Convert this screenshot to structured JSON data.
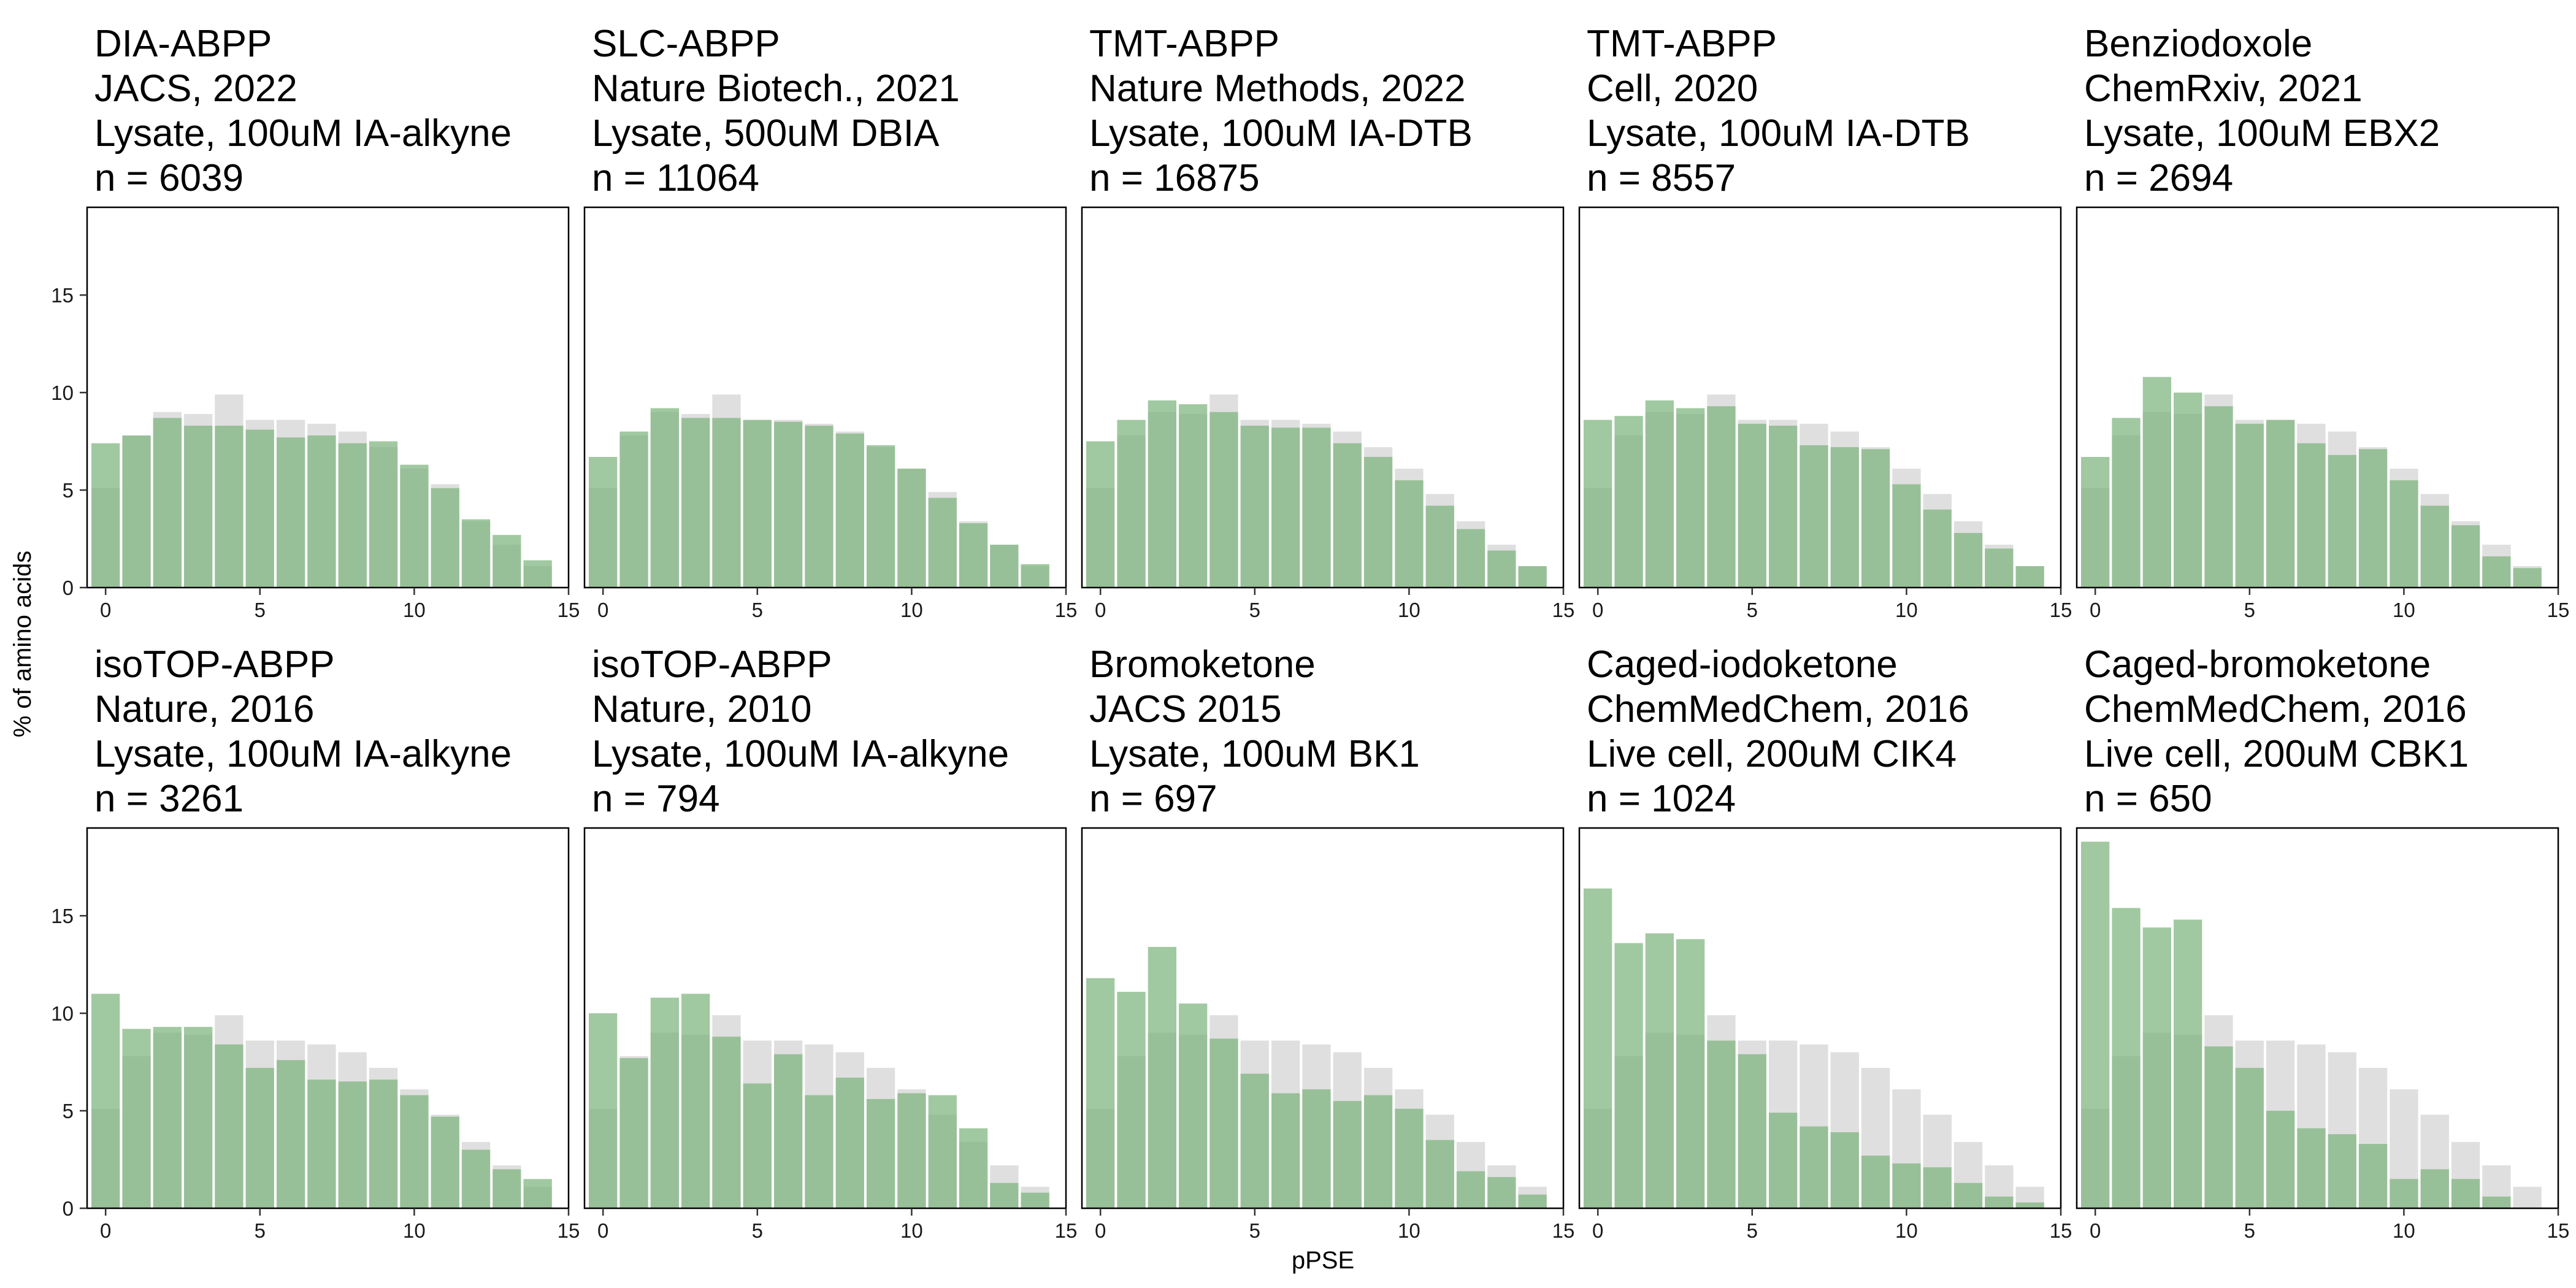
{
  "figure": {
    "ylabel": "% of amino acids",
    "xlabel": "pPSE"
  },
  "colors": {
    "background_bars": "#d9d9d9",
    "foreground_bars": "#79b279",
    "panel_border": "#000000"
  },
  "chart_data": [
    {
      "type": "bar",
      "title_lines": [
        "DIA-ABPP",
        "JACS, 2022",
        "Lysate, 100uM IA-alkyne",
        "n = 6039"
      ],
      "x": [
        0,
        1,
        2,
        3,
        4,
        5,
        6,
        7,
        8,
        9,
        10,
        11,
        12,
        13,
        14
      ],
      "series": [
        {
          "values": [
            5.1,
            7.8,
            9.0,
            8.9,
            9.9,
            8.6,
            8.6,
            8.4,
            8.0,
            7.2,
            6.1,
            5.3,
            3.4,
            2.2,
            1.1
          ]
        },
        {
          "values": [
            7.4,
            7.8,
            8.7,
            8.3,
            8.3,
            8.1,
            7.7,
            7.8,
            7.4,
            7.5,
            6.3,
            5.1,
            3.5,
            2.7,
            1.4
          ]
        }
      ],
      "xlim": [
        -0.6,
        15
      ],
      "ylim": [
        0,
        19.5
      ],
      "xticks": [
        0,
        5,
        10,
        15
      ],
      "yticks": [
        0,
        5,
        10,
        15
      ]
    },
    {
      "type": "bar",
      "title_lines": [
        "SLC-ABPP",
        "Nature Biotech., 2021",
        "Lysate, 500uM DBIA",
        "n = 11064"
      ],
      "x": [
        0,
        1,
        2,
        3,
        4,
        5,
        6,
        7,
        8,
        9,
        10,
        11,
        12,
        13,
        14
      ],
      "series": [
        {
          "values": [
            5.1,
            7.8,
            9.0,
            8.9,
            9.9,
            8.6,
            8.6,
            8.4,
            8.0,
            7.2,
            6.1,
            4.9,
            3.4,
            2.2,
            1.1
          ]
        },
        {
          "values": [
            6.7,
            8.0,
            9.2,
            8.7,
            8.7,
            8.6,
            8.5,
            8.3,
            7.9,
            7.3,
            6.1,
            4.6,
            3.3,
            2.2,
            1.2
          ]
        }
      ],
      "xlim": [
        -0.6,
        15
      ],
      "ylim": [
        0,
        19.5
      ],
      "xticks": [
        0,
        5,
        10,
        15
      ],
      "yticks": [
        0,
        5,
        10,
        15
      ]
    },
    {
      "type": "bar",
      "title_lines": [
        "TMT-ABPP",
        "Nature Methods, 2022",
        "Lysate, 100uM IA-DTB",
        "n = 16875"
      ],
      "x": [
        0,
        1,
        2,
        3,
        4,
        5,
        6,
        7,
        8,
        9,
        10,
        11,
        12,
        13,
        14
      ],
      "series": [
        {
          "values": [
            5.1,
            7.8,
            9.0,
            8.9,
            9.9,
            8.6,
            8.6,
            8.4,
            8.0,
            7.2,
            6.1,
            4.8,
            3.4,
            2.2,
            1.1
          ]
        },
        {
          "values": [
            7.5,
            8.6,
            9.6,
            9.4,
            9.0,
            8.3,
            8.2,
            8.2,
            7.4,
            6.7,
            5.5,
            4.2,
            3.0,
            1.9,
            1.1
          ]
        }
      ],
      "xlim": [
        -0.6,
        15
      ],
      "ylim": [
        0,
        19.5
      ],
      "xticks": [
        0,
        5,
        10,
        15
      ],
      "yticks": [
        0,
        5,
        10,
        15
      ]
    },
    {
      "type": "bar",
      "title_lines": [
        "TMT-ABPP",
        "Cell, 2020",
        "Lysate, 100uM IA-DTB",
        "n = 8557"
      ],
      "x": [
        0,
        1,
        2,
        3,
        4,
        5,
        6,
        7,
        8,
        9,
        10,
        11,
        12,
        13,
        14
      ],
      "series": [
        {
          "values": [
            5.1,
            7.8,
            9.0,
            8.9,
            9.9,
            8.6,
            8.6,
            8.4,
            8.0,
            7.2,
            6.1,
            4.8,
            3.4,
            2.2,
            1.1
          ]
        },
        {
          "values": [
            8.6,
            8.8,
            9.6,
            9.2,
            9.3,
            8.4,
            8.3,
            7.3,
            7.2,
            7.1,
            5.3,
            4.0,
            2.8,
            2.0,
            1.1
          ]
        }
      ],
      "xlim": [
        -0.6,
        15
      ],
      "ylim": [
        0,
        19.5
      ],
      "xticks": [
        0,
        5,
        10,
        15
      ],
      "yticks": [
        0,
        5,
        10,
        15
      ]
    },
    {
      "type": "bar",
      "title_lines": [
        "Benziodoxole",
        "ChemRxiv, 2021",
        "Lysate, 100uM EBX2",
        "n = 2694"
      ],
      "x": [
        0,
        1,
        2,
        3,
        4,
        5,
        6,
        7,
        8,
        9,
        10,
        11,
        12,
        13,
        14
      ],
      "series": [
        {
          "values": [
            5.1,
            7.8,
            9.0,
            8.9,
            9.9,
            8.6,
            8.6,
            8.4,
            8.0,
            7.2,
            6.1,
            4.8,
            3.4,
            2.2,
            1.1
          ]
        },
        {
          "values": [
            6.7,
            8.7,
            10.8,
            10.0,
            9.3,
            8.4,
            8.6,
            7.4,
            6.8,
            7.1,
            5.5,
            4.2,
            3.2,
            1.6,
            1.0
          ]
        }
      ],
      "xlim": [
        -0.6,
        15
      ],
      "ylim": [
        0,
        19.5
      ],
      "xticks": [
        0,
        5,
        10,
        15
      ],
      "yticks": [
        0,
        5,
        10,
        15
      ]
    },
    {
      "type": "bar",
      "title_lines": [
        "isoTOP-ABPP",
        "Nature, 2016",
        "Lysate, 100uM IA-alkyne",
        "n = 3261"
      ],
      "x": [
        0,
        1,
        2,
        3,
        4,
        5,
        6,
        7,
        8,
        9,
        10,
        11,
        12,
        13,
        14
      ],
      "series": [
        {
          "values": [
            5.1,
            7.8,
            9.0,
            8.9,
            9.9,
            8.6,
            8.6,
            8.4,
            8.0,
            7.2,
            6.1,
            4.8,
            3.4,
            2.2,
            1.1
          ]
        },
        {
          "values": [
            11.0,
            9.2,
            9.3,
            9.3,
            8.4,
            7.2,
            7.6,
            6.6,
            6.5,
            6.6,
            5.8,
            4.7,
            3.0,
            2.0,
            1.5
          ]
        }
      ],
      "xlim": [
        -0.6,
        15
      ],
      "ylim": [
        0,
        19.5
      ],
      "xticks": [
        0,
        5,
        10,
        15
      ],
      "yticks": [
        0,
        5,
        10,
        15
      ]
    },
    {
      "type": "bar",
      "title_lines": [
        "isoTOP-ABPP",
        "Nature, 2010",
        "Lysate, 100uM IA-alkyne",
        "n = 794"
      ],
      "x": [
        0,
        1,
        2,
        3,
        4,
        5,
        6,
        7,
        8,
        9,
        10,
        11,
        12,
        13,
        14
      ],
      "series": [
        {
          "values": [
            5.1,
            7.8,
            9.0,
            8.9,
            9.9,
            8.6,
            8.6,
            8.4,
            8.0,
            7.2,
            6.1,
            4.8,
            3.4,
            2.2,
            1.1
          ]
        },
        {
          "values": [
            10.0,
            7.7,
            10.8,
            11.0,
            8.8,
            6.4,
            7.9,
            5.8,
            6.7,
            5.6,
            5.9,
            5.8,
            4.1,
            1.3,
            0.8
          ]
        }
      ],
      "xlim": [
        -0.6,
        15
      ],
      "ylim": [
        0,
        19.5
      ],
      "xticks": [
        0,
        5,
        10,
        15
      ],
      "yticks": [
        0,
        5,
        10,
        15
      ]
    },
    {
      "type": "bar",
      "title_lines": [
        "Bromoketone",
        "JACS 2015",
        "Lysate, 100uM BK1",
        "n = 697"
      ],
      "x": [
        0,
        1,
        2,
        3,
        4,
        5,
        6,
        7,
        8,
        9,
        10,
        11,
        12,
        13,
        14
      ],
      "series": [
        {
          "values": [
            5.1,
            7.8,
            9.0,
            8.9,
            9.9,
            8.6,
            8.6,
            8.4,
            8.0,
            7.2,
            6.1,
            4.8,
            3.4,
            2.2,
            1.1
          ]
        },
        {
          "values": [
            11.8,
            11.1,
            13.4,
            10.5,
            8.7,
            6.9,
            5.9,
            6.1,
            5.5,
            5.8,
            5.1,
            3.5,
            1.9,
            1.6,
            0.7
          ]
        }
      ],
      "xlim": [
        -0.6,
        15
      ],
      "ylim": [
        0,
        19.5
      ],
      "xticks": [
        0,
        5,
        10,
        15
      ],
      "yticks": [
        0,
        5,
        10,
        15
      ]
    },
    {
      "type": "bar",
      "title_lines": [
        "Caged-iodoketone",
        "ChemMedChem, 2016",
        "Live cell, 200uM CIK4",
        "n = 1024"
      ],
      "x": [
        0,
        1,
        2,
        3,
        4,
        5,
        6,
        7,
        8,
        9,
        10,
        11,
        12,
        13,
        14
      ],
      "series": [
        {
          "values": [
            5.1,
            7.8,
            9.0,
            8.9,
            9.9,
            8.6,
            8.6,
            8.4,
            8.0,
            7.2,
            6.1,
            4.8,
            3.4,
            2.2,
            1.1
          ]
        },
        {
          "values": [
            16.4,
            13.6,
            14.1,
            13.8,
            8.6,
            7.9,
            4.9,
            4.2,
            3.9,
            2.7,
            2.3,
            2.1,
            1.3,
            0.6,
            0.3
          ]
        }
      ],
      "xlim": [
        -0.6,
        15
      ],
      "ylim": [
        0,
        19.5
      ],
      "xticks": [
        0,
        5,
        10,
        15
      ],
      "yticks": [
        0,
        5,
        10,
        15
      ]
    },
    {
      "type": "bar",
      "title_lines": [
        "Caged-bromoketone",
        "ChemMedChem, 2016",
        "Live cell, 200uM CBK1",
        "n = 650"
      ],
      "x": [
        0,
        1,
        2,
        3,
        4,
        5,
        6,
        7,
        8,
        9,
        10,
        11,
        12,
        13,
        14
      ],
      "series": [
        {
          "values": [
            5.1,
            7.8,
            9.0,
            8.9,
            9.9,
            8.6,
            8.6,
            8.4,
            8.0,
            7.2,
            6.1,
            4.8,
            3.4,
            2.2,
            1.1
          ]
        },
        {
          "values": [
            18.8,
            15.4,
            14.4,
            14.8,
            8.3,
            7.2,
            5.0,
            4.1,
            3.8,
            3.3,
            1.5,
            2.0,
            1.5,
            0.6,
            0.0
          ]
        }
      ],
      "xlim": [
        -0.6,
        15
      ],
      "ylim": [
        0,
        19.5
      ],
      "xticks": [
        0,
        5,
        10,
        15
      ],
      "yticks": [
        0,
        5,
        10,
        15
      ]
    }
  ]
}
